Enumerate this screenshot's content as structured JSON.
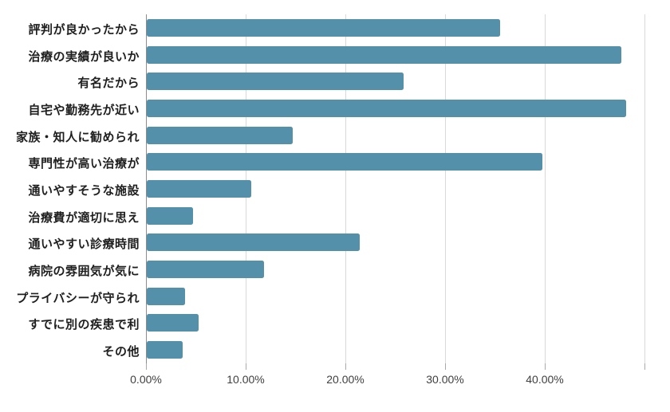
{
  "chart_data": {
    "type": "bar",
    "orientation": "horizontal",
    "title": "",
    "xlabel": "",
    "ylabel": "",
    "categories": [
      "評判が良かったから",
      "治療の実績が良いか",
      "有名だから",
      "自宅や勤務先が近い",
      "家族・知人に勧められ",
      "専門性が高い治療が",
      "通いやすそうな施設",
      "治療費が適切に思え",
      "通いやすい診療時間",
      "病院の雰囲気が気に",
      "プライバシーが守られ",
      "すでに別の疾患で利",
      "その他"
    ],
    "values": [
      35.5,
      47.6,
      25.8,
      48.1,
      14.7,
      39.7,
      10.5,
      4.7,
      21.4,
      11.8,
      3.9,
      5.2,
      3.6
    ],
    "value_unit": "%",
    "xlim": [
      0,
      50
    ],
    "x_gridlines": [
      0,
      10,
      20,
      30,
      40,
      50
    ],
    "x_ticks": [
      0,
      10,
      20,
      30,
      40
    ],
    "x_tick_labels": [
      "0.00%",
      "10.00%",
      "20.00%",
      "30.00%",
      "40.00%"
    ],
    "grid": true,
    "legend": false,
    "bar_color": "#5590ab",
    "gridline_color": "#d9d9d9",
    "axis_line_color": "#8c8c8c",
    "tick_label_color": "#3f3f3f",
    "category_label_color": "#1f1f1f",
    "background_color": "#ffffff"
  }
}
